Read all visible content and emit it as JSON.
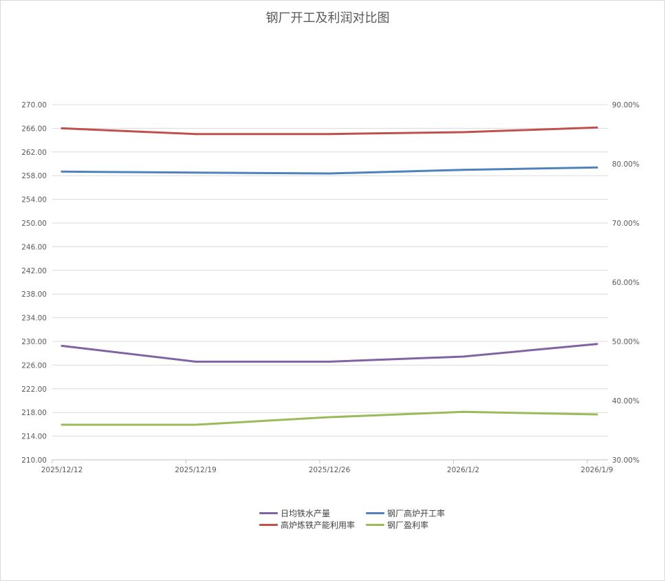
{
  "chart_data": {
    "type": "line",
    "title": "钢厂开工及利润对比图",
    "categories": [
      "2025/12/12",
      "2025/12/19",
      "2025/12/26",
      "2026/1/2",
      "2026/1/9"
    ],
    "y_left": {
      "range": [
        210,
        270
      ],
      "step": 4,
      "ticks": [
        "210.00",
        "214.00",
        "218.00",
        "222.00",
        "226.00",
        "230.00",
        "234.00",
        "238.00",
        "242.00",
        "246.00",
        "250.00",
        "254.00",
        "258.00",
        "262.00",
        "266.00",
        "270.00"
      ]
    },
    "y_right": {
      "range": [
        30,
        90
      ],
      "step": 10,
      "unit": "%",
      "ticks": [
        "30.00%",
        "40.00%",
        "50.00%",
        "60.00%",
        "70.00%",
        "80.00%",
        "90.00%"
      ]
    },
    "grid": true,
    "legend_position": "bottom",
    "series": [
      {
        "name": "日均铁水产量",
        "axis": "left",
        "color": "#8064a2",
        "values": [
          229.26,
          226.58,
          226.58,
          227.44,
          229.57
        ]
      },
      {
        "name": "钢厂高炉开工率",
        "axis": "right",
        "color": "#4f81bd",
        "values": [
          78.69,
          78.52,
          78.37,
          78.99,
          79.38
        ]
      },
      {
        "name": "高炉炼铁产能利用率",
        "axis": "right",
        "color": "#c0504d",
        "values": [
          86.0,
          85.03,
          85.03,
          85.35,
          86.13
        ]
      },
      {
        "name": "钢厂盈利率",
        "axis": "right",
        "color": "#9bbb59",
        "values": [
          35.93,
          35.93,
          37.21,
          38.1,
          37.67
        ]
      }
    ]
  }
}
